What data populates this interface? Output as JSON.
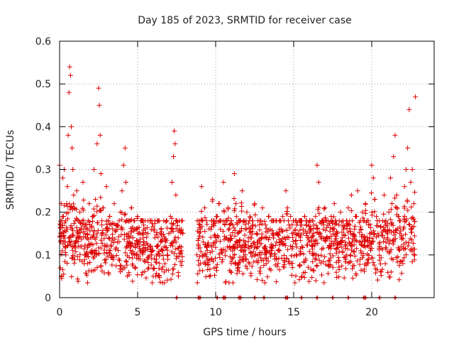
{
  "chart_data": {
    "type": "scatter",
    "title": "Day 185 of 2023, SRMTID for receiver case",
    "xlabel": "GPS time / hours",
    "ylabel": "SRMTID / TECUs",
    "xlim": [
      0,
      24
    ],
    "ylim": [
      0,
      0.6
    ],
    "xticks": [
      0,
      5,
      10,
      15,
      20
    ],
    "yticks": [
      0,
      0.1,
      0.2,
      0.3,
      0.4,
      0.5,
      0.6
    ],
    "ytick_labels": [
      "0",
      "0.1",
      "0.2",
      "0.3",
      "0.4",
      "0.5",
      "0.6"
    ],
    "grid": true,
    "marker": "+",
    "color": "#dd0000",
    "data_gap_hours": [
      7.9,
      8.8
    ],
    "zero_markers_x": [
      7.5,
      8.9,
      9.0,
      10.1,
      10.5,
      10.6,
      11.5,
      11.6,
      12.5,
      13.1,
      14.5,
      14.6,
      15.5,
      16.5,
      17.5,
      18.5,
      19.5,
      19.6,
      20.5,
      21.5
    ],
    "series": [
      {
        "name": "SRMTID",
        "x": [
          0.0,
          0.05,
          0.1,
          0.15,
          0.2,
          0.25,
          0.3,
          0.35,
          0.4,
          0.45,
          0.5,
          0.55,
          0.6,
          0.65,
          0.7,
          0.75,
          0.8,
          0.85,
          0.9,
          0.95,
          1.0,
          1.1,
          1.2,
          1.3,
          1.4,
          1.5,
          1.6,
          1.7,
          1.8,
          1.9,
          2.0,
          2.1,
          2.2,
          2.3,
          2.4,
          2.5,
          2.55,
          2.6,
          2.65,
          2.7,
          2.8,
          2.9,
          3.0,
          3.1,
          3.2,
          3.3,
          3.4,
          3.5,
          3.6,
          3.7,
          3.8,
          3.9,
          4.0,
          4.1,
          4.2,
          4.25,
          4.3,
          4.4,
          4.5,
          4.6,
          4.7,
          4.8,
          4.9,
          5.0,
          5.1,
          5.2,
          5.3,
          5.4,
          5.5,
          5.6,
          5.7,
          5.8,
          5.9,
          6.0,
          6.1,
          6.2,
          6.3,
          6.4,
          6.5,
          6.6,
          6.7,
          6.8,
          6.9,
          7.0,
          7.1,
          7.2,
          7.3,
          7.35,
          7.4,
          7.45,
          7.5,
          7.6,
          7.7,
          7.8,
          9.0,
          9.1,
          9.2,
          9.3,
          9.4,
          9.5,
          9.6,
          9.7,
          9.8,
          9.9,
          10.0,
          10.1,
          10.2,
          10.3,
          10.4,
          10.5,
          10.6,
          10.7,
          10.8,
          10.9,
          11.0,
          11.1,
          11.2,
          11.3,
          11.4,
          11.5,
          11.6,
          11.7,
          11.8,
          11.9,
          12.0,
          12.1,
          12.2,
          12.3,
          12.4,
          12.5,
          12.6,
          12.7,
          12.8,
          12.9,
          13.0,
          13.1,
          13.2,
          13.3,
          13.4,
          13.5,
          13.6,
          13.7,
          13.8,
          13.9,
          14.0,
          14.1,
          14.2,
          14.3,
          14.4,
          14.5,
          14.6,
          14.7,
          14.8,
          14.9,
          15.0,
          15.1,
          15.2,
          15.3,
          15.4,
          15.5,
          15.6,
          15.7,
          15.8,
          15.9,
          16.0,
          16.1,
          16.2,
          16.3,
          16.4,
          16.5,
          16.6,
          16.7,
          16.8,
          16.9,
          17.0,
          17.1,
          17.2,
          17.3,
          17.4,
          17.5,
          17.6,
          17.7,
          17.8,
          17.9,
          18.0,
          18.1,
          18.2,
          18.3,
          18.4,
          18.5,
          18.6,
          18.7,
          18.8,
          18.9,
          19.0,
          19.1,
          19.2,
          19.3,
          19.4,
          19.5,
          19.6,
          19.7,
          19.8,
          19.9,
          20.0,
          20.1,
          20.2,
          20.3,
          20.4,
          20.5,
          20.6,
          20.7,
          20.8,
          20.9,
          21.0,
          21.1,
          21.2,
          21.3,
          21.4,
          21.5,
          21.6,
          21.7,
          21.8,
          21.9,
          22.0,
          22.1,
          22.2,
          22.3,
          22.4,
          22.5,
          22.6,
          22.7,
          22.8
        ],
        "y": [
          0.31,
          0.17,
          0.22,
          0.15,
          0.28,
          0.19,
          0.3,
          0.13,
          0.1,
          0.22,
          0.26,
          0.38,
          0.48,
          0.54,
          0.52,
          0.4,
          0.35,
          0.3,
          0.24,
          0.21,
          0.18,
          0.25,
          0.15,
          0.2,
          0.12,
          0.27,
          0.1,
          0.16,
          0.08,
          0.22,
          0.14,
          0.19,
          0.3,
          0.23,
          0.36,
          0.49,
          0.45,
          0.38,
          0.29,
          0.17,
          0.21,
          0.12,
          0.26,
          0.16,
          0.19,
          0.1,
          0.14,
          0.22,
          0.17,
          0.13,
          0.09,
          0.2,
          0.25,
          0.31,
          0.35,
          0.27,
          0.18,
          0.15,
          0.12,
          0.21,
          0.14,
          0.1,
          0.16,
          0.19,
          0.12,
          0.18,
          0.15,
          0.13,
          0.11,
          0.09,
          0.07,
          0.12,
          0.1,
          0.05,
          0.14,
          0.09,
          0.12,
          0.08,
          0.16,
          0.11,
          0.06,
          0.13,
          0.1,
          0.15,
          0.19,
          0.27,
          0.33,
          0.39,
          0.36,
          0.24,
          0.18,
          0.14,
          0.12,
          0.16,
          0.17,
          0.26,
          0.13,
          0.21,
          0.12,
          0.09,
          0.05,
          0.16,
          0.23,
          0.18,
          0.14,
          0.19,
          0.22,
          0.16,
          0.11,
          0.27,
          0.18,
          0.14,
          0.21,
          0.12,
          0.08,
          0.17,
          0.29,
          0.22,
          0.15,
          0.13,
          0.18,
          0.25,
          0.11,
          0.16,
          0.2,
          0.14,
          0.19,
          0.12,
          0.17,
          0.22,
          0.15,
          0.13,
          0.1,
          0.18,
          0.21,
          0.14,
          0.17,
          0.11,
          0.19,
          0.16,
          0.12,
          0.15,
          0.09,
          0.13,
          0.08,
          0.11,
          0.16,
          0.19,
          0.14,
          0.25,
          0.21,
          0.17,
          0.19,
          0.15,
          0.18,
          0.16,
          0.17,
          0.15,
          0.18,
          0.17,
          0.16,
          0.19,
          0.18,
          0.14,
          0.13,
          0.16,
          0.12,
          0.17,
          0.19,
          0.31,
          0.27,
          0.15,
          0.18,
          0.16,
          0.21,
          0.14,
          0.17,
          0.12,
          0.19,
          0.16,
          0.22,
          0.18,
          0.15,
          0.17,
          0.2,
          0.14,
          0.16,
          0.13,
          0.18,
          0.21,
          0.17,
          0.24,
          0.15,
          0.16,
          0.19,
          0.25,
          0.13,
          0.16,
          0.2,
          0.14,
          0.22,
          0.18,
          0.17,
          0.15,
          0.31,
          0.28,
          0.23,
          0.19,
          0.15,
          0.12,
          0.06,
          0.18,
          0.24,
          0.17,
          0.14,
          0.2,
          0.28,
          0.22,
          0.33,
          0.38,
          0.24,
          0.19,
          0.15,
          0.12,
          0.08,
          0.26,
          0.3,
          0.35,
          0.44,
          0.27,
          0.3,
          0.22,
          0.47
        ]
      }
    ]
  }
}
